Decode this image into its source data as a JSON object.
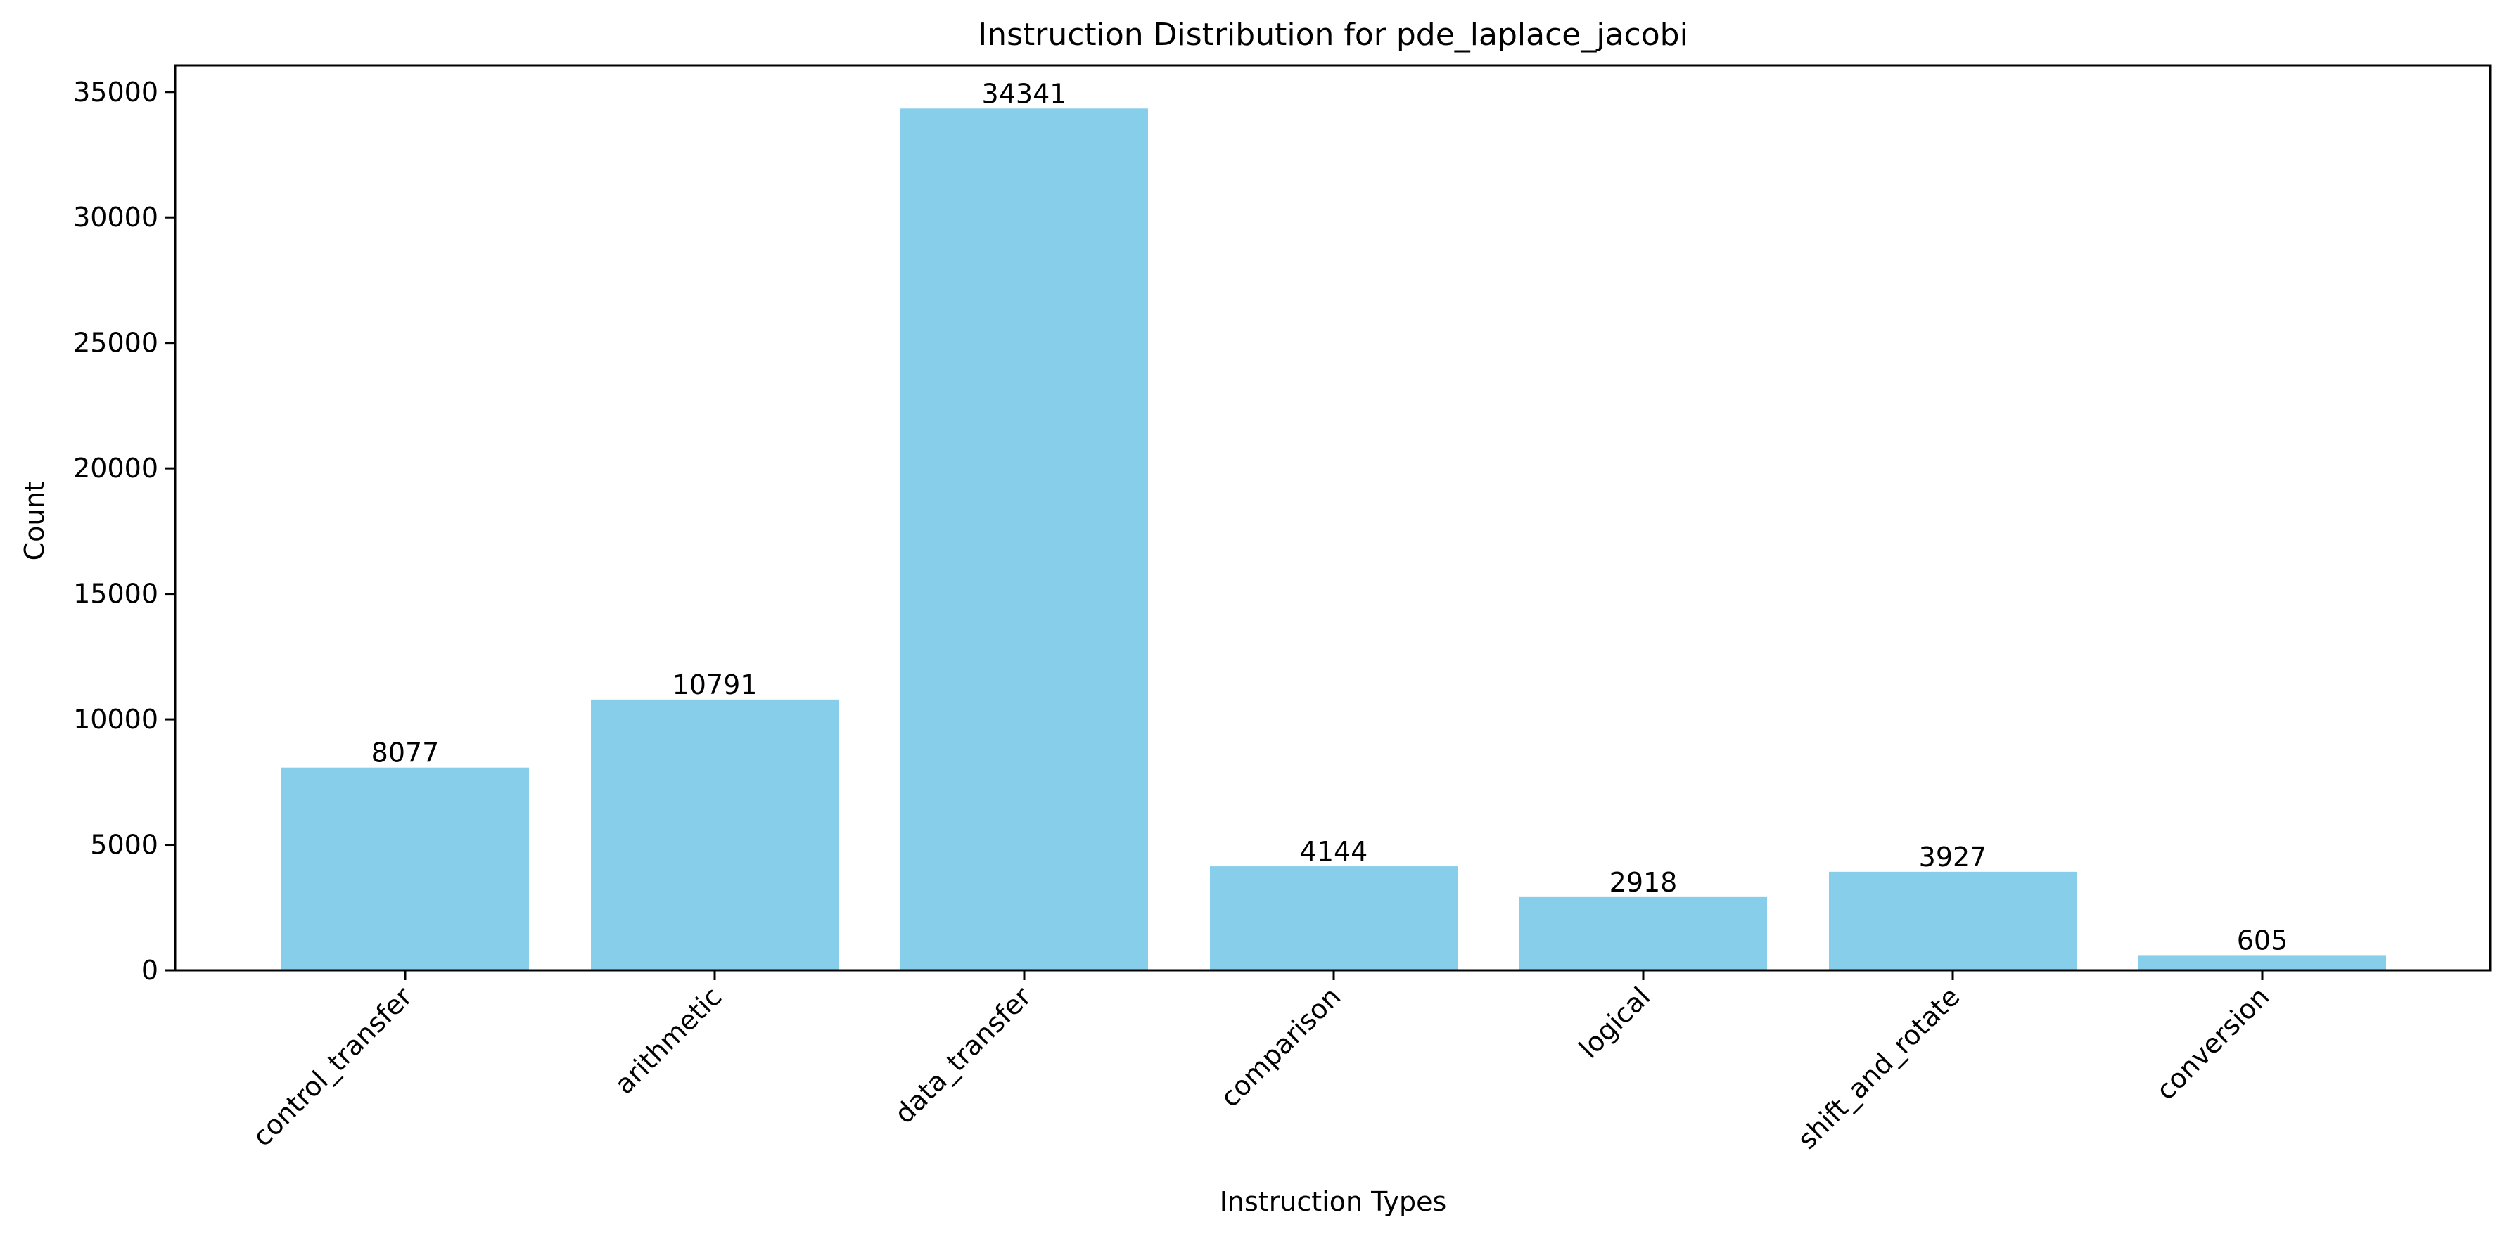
{
  "chart_data": {
    "type": "bar",
    "title": "Instruction Distribution for pde_laplace_jacobi",
    "xlabel": "Instruction Types",
    "ylabel": "Count",
    "categories": [
      "control_transfer",
      "arithmetic",
      "data_transfer",
      "comparison",
      "logical",
      "shift_and_rotate",
      "conversion"
    ],
    "values": [
      8077,
      10791,
      34341,
      4144,
      2918,
      3927,
      605
    ],
    "value_labels": [
      "8077",
      "10791",
      "34341",
      "4144",
      "2918",
      "3927",
      "605"
    ],
    "ylim": [
      0,
      36058
    ],
    "yticks": [
      0,
      5000,
      10000,
      15000,
      20000,
      25000,
      30000,
      35000
    ],
    "ytick_labels": [
      "0",
      "5000",
      "10000",
      "15000",
      "20000",
      "25000",
      "30000",
      "35000"
    ],
    "bar_color": "#87CEEB",
    "grid": false,
    "legend": "none"
  }
}
